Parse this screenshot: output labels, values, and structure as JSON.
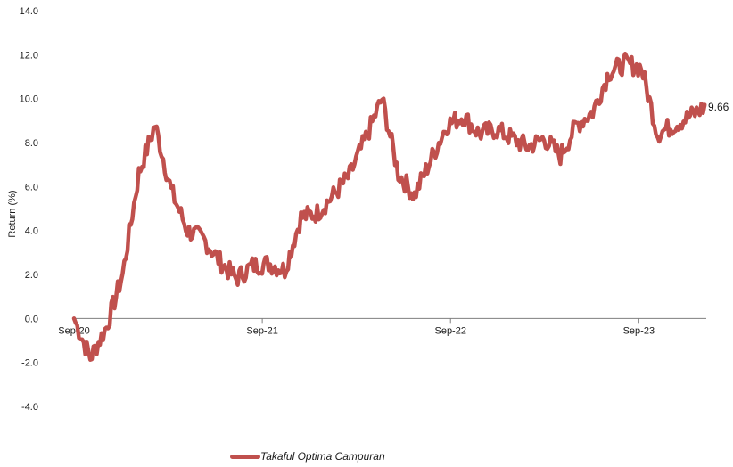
{
  "chart_data": {
    "type": "line",
    "title": "",
    "xlabel": "",
    "ylabel": "Return (%)",
    "ylim": [
      -4.0,
      14.0
    ],
    "y_ticks": [
      "14.0",
      "12.0",
      "10.0",
      "8.0",
      "6.0",
      "4.0",
      "2.0",
      "0.0",
      "-2.0",
      "-4.0"
    ],
    "x_ticks": [
      "Sep-20",
      "Sep-21",
      "Sep-22",
      "Sep-23"
    ],
    "grid": false,
    "legend_position": "bottom",
    "series": [
      {
        "name": "Takaful Optima Campuran",
        "color": "#c0504d",
        "end_label": "9.66",
        "points": [
          [
            "Sep-20",
            0.0
          ],
          [
            "Oct-20",
            -1.8
          ],
          [
            "Nov-20",
            -0.4
          ],
          [
            "Dec-20",
            2.0
          ],
          [
            "Jan-21",
            6.6
          ],
          [
            "Feb-21",
            8.8
          ],
          [
            "Mar-21",
            5.8
          ],
          [
            "Apr-21",
            4.0
          ],
          [
            "May-21",
            3.6
          ],
          [
            "Jun-21",
            2.6
          ],
          [
            "Jul-21",
            1.8
          ],
          [
            "Aug-21",
            2.4
          ],
          [
            "Sep-21",
            2.5
          ],
          [
            "Oct-21",
            2.2
          ],
          [
            "Nov-21",
            4.6
          ],
          [
            "Dec-21",
            4.8
          ],
          [
            "Jan-22",
            5.6
          ],
          [
            "Feb-22",
            6.5
          ],
          [
            "Mar-22",
            8.2
          ],
          [
            "Apr-22",
            10.0
          ],
          [
            "May-22",
            6.6
          ],
          [
            "Jun-22",
            5.6
          ],
          [
            "Jul-22",
            7.2
          ],
          [
            "Aug-22",
            8.8
          ],
          [
            "Sep-22",
            9.2
          ],
          [
            "Oct-22",
            8.4
          ],
          [
            "Nov-22",
            8.6
          ],
          [
            "Dec-22",
            8.2
          ],
          [
            "Jan-23",
            7.8
          ],
          [
            "Feb-23",
            8.2
          ],
          [
            "Mar-23",
            7.4
          ],
          [
            "Apr-23",
            8.8
          ],
          [
            "May-23",
            9.4
          ],
          [
            "Jun-23",
            11.2
          ],
          [
            "Jul-23",
            11.6
          ],
          [
            "Aug-23",
            11.4
          ],
          [
            "Sep-23",
            8.4
          ],
          [
            "Oct-23",
            8.8
          ],
          [
            "Nov-23",
            9.2
          ],
          [
            "Dec-23",
            9.66
          ]
        ]
      }
    ]
  }
}
